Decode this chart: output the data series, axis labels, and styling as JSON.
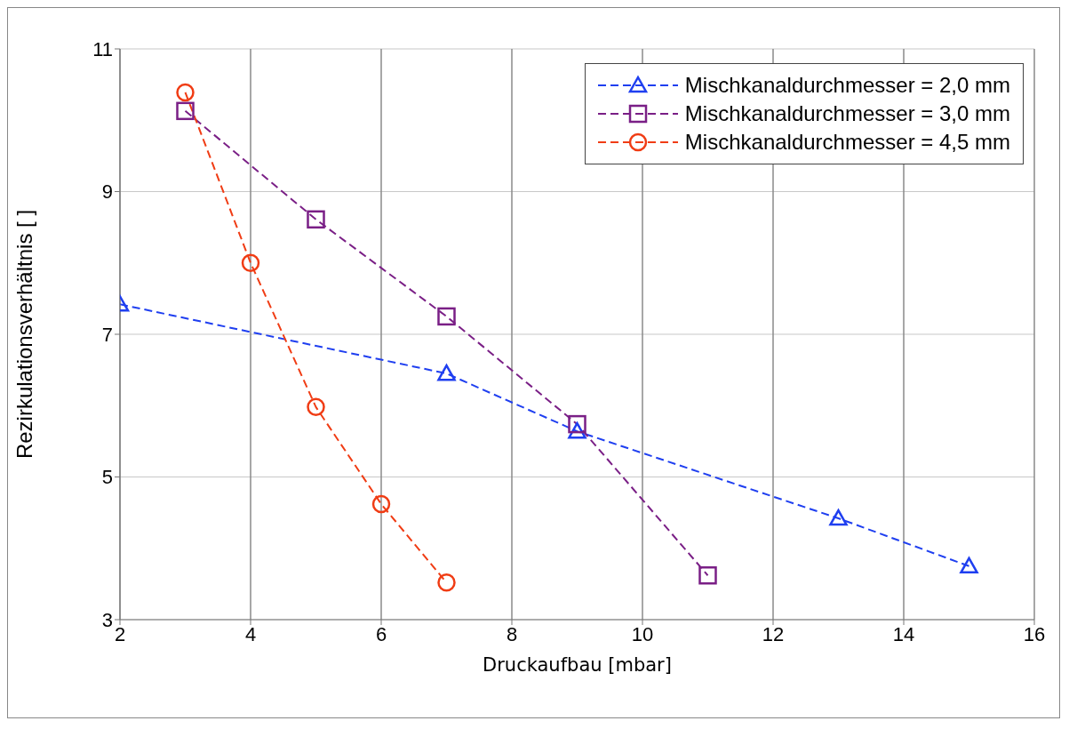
{
  "chart_data": {
    "type": "line",
    "xlabel": "Druckaufbau [mbar]",
    "ylabel": "Rezirkulationsverhältnis [ ]",
    "xlim": [
      2,
      16
    ],
    "xticks": [
      2,
      4,
      6,
      8,
      10,
      12,
      14,
      16
    ],
    "ylim": [
      3,
      11
    ],
    "yticks": [
      3,
      5,
      7,
      9,
      11
    ],
    "grid": true,
    "legend": "top right",
    "line_style": "dashed",
    "series": [
      {
        "name": "Mischkanaldurchmesser = 2,0 mm",
        "color": "#1f3ff0",
        "marker": "triangle",
        "x": [
          2,
          7,
          9,
          13,
          15
        ],
        "values": [
          7.42,
          6.45,
          5.64,
          4.42,
          3.75
        ]
      },
      {
        "name": "Mischkanaldurchmesser = 3,0 mm",
        "color": "#7a1f86",
        "marker": "square",
        "x": [
          3,
          5,
          7,
          9,
          11
        ],
        "values": [
          10.13,
          8.61,
          7.25,
          5.74,
          3.62
        ]
      },
      {
        "name": "Mischkanaldurchmesser = 4,5 mm",
        "color": "#f03c14",
        "marker": "circle",
        "x": [
          3,
          4,
          5,
          6,
          7
        ],
        "values": [
          10.39,
          8.0,
          5.98,
          4.62,
          3.52
        ]
      }
    ]
  }
}
